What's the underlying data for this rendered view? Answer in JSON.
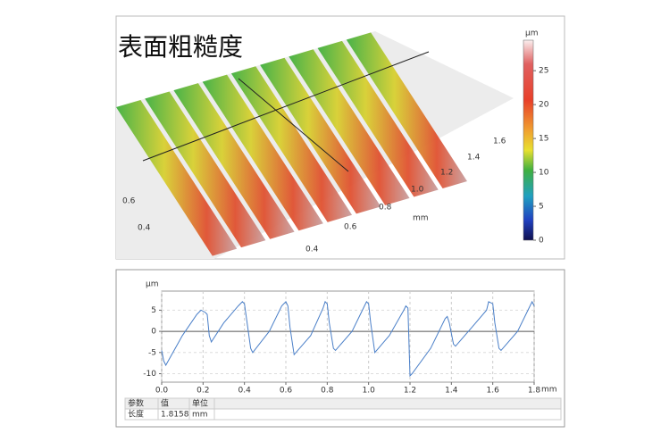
{
  "surface_view": {
    "title": "表面粗糙度",
    "colorbar": {
      "unit": "μm",
      "range": [
        0,
        29.5
      ],
      "ticks": [
        0,
        5,
        10,
        15,
        20,
        25
      ]
    },
    "axis_labels": [
      "1.6",
      "1.4",
      "1.2",
      "1.0",
      "0.8",
      "0.6",
      "0.4"
    ],
    "axis_unit": "mm",
    "side_labels": [
      "0.6",
      "0.4"
    ]
  },
  "chart_data": {
    "type": "line",
    "y_label": "μm",
    "x_unit": "mm",
    "x": [
      0,
      0.01,
      0.02,
      0.1,
      0.17,
      0.19,
      0.21,
      0.22,
      0.23,
      0.24,
      0.3,
      0.37,
      0.39,
      0.4,
      0.41,
      0.43,
      0.44,
      0.52,
      0.58,
      0.6,
      0.61,
      0.62,
      0.64,
      0.72,
      0.78,
      0.79,
      0.8,
      0.81,
      0.83,
      0.84,
      0.92,
      0.98,
      0.99,
      1.0,
      1.01,
      1.03,
      1.1,
      1.17,
      1.18,
      1.19,
      1.2,
      1.21,
      1.3,
      1.37,
      1.38,
      1.39,
      1.41,
      1.42,
      1.5,
      1.57,
      1.58,
      1.6,
      1.61,
      1.63,
      1.64,
      1.72,
      1.77,
      1.79,
      1.8
    ],
    "series": [
      {
        "color": "#4a7fc8",
        "values": [
          -4.5,
          -7,
          -8,
          -1,
          4,
          5,
          4.5,
          4,
          -1,
          -2.5,
          2,
          6,
          7,
          6.5,
          3,
          -4,
          -5,
          0,
          6,
          7,
          6,
          1,
          -5.5,
          -1,
          5.5,
          7,
          6.5,
          2,
          -4,
          -4.5,
          0,
          6,
          7,
          6.5,
          2,
          -5,
          -1,
          5,
          6,
          5.5,
          -10.5,
          -10,
          -4,
          3,
          3.5,
          2,
          -3,
          -3.5,
          1,
          5,
          7,
          6.5,
          2,
          -4,
          -4.5,
          0,
          5,
          7,
          6
        ]
      }
    ],
    "xlim": [
      0,
      1.8
    ],
    "ylim": [
      -12,
      9.5
    ],
    "xticks": [
      {
        "value": 0,
        "label": "0.0"
      },
      0.2,
      0.4,
      0.6,
      0.8,
      {
        "value": 1,
        "label": "1.0"
      },
      1.2,
      1.4,
      1.6,
      1.8
    ],
    "yticks": [
      5,
      0,
      -5,
      -10
    ],
    "grid": true
  },
  "table": {
    "header": [
      "参数",
      "值",
      "单位"
    ],
    "rows": [
      [
        "长度",
        "1.8158",
        "mm"
      ]
    ]
  }
}
